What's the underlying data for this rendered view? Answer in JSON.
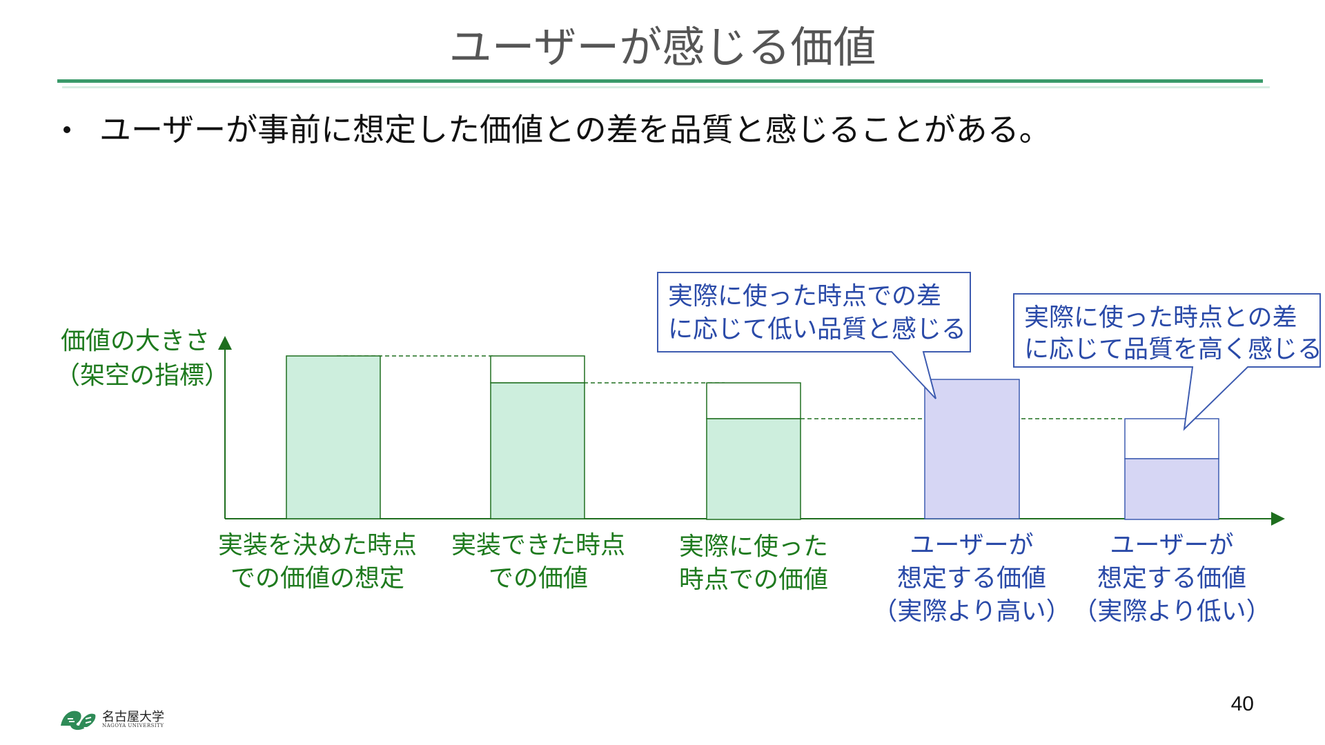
{
  "slide": {
    "title": "ユーザーが感じる価値",
    "bullet": "ユーザーが事前に想定した価値との差を品質と感じることがある。",
    "page_number": "40"
  },
  "diagram": {
    "y_axis_label": [
      "価値の大きさ",
      "（架空の指標）"
    ],
    "bars": [
      {
        "label": [
          "実装を決めた時点",
          "での価値の想定"
        ],
        "value": 100,
        "color": "green"
      },
      {
        "label": [
          "実装できた時点",
          "での価値"
        ],
        "value": 86,
        "outline_value": 100,
        "color": "green"
      },
      {
        "label": [
          "実際に使った",
          "時点での価値"
        ],
        "value": 63,
        "outline_value": 86,
        "color": "green"
      },
      {
        "label": [
          "ユーザーが",
          "想定する価値",
          "（実際より高い）"
        ],
        "value": 86,
        "color": "blue"
      },
      {
        "label": [
          "ユーザーが",
          "想定する価値",
          "（実際より低い）"
        ],
        "value": 38,
        "outline_value": 63,
        "color": "blue"
      }
    ],
    "callouts": [
      {
        "lines": [
          "実際に使った時点での差",
          "に応じて低い品質と感じる"
        ]
      },
      {
        "lines": [
          "実際に使った時点との差",
          "に応じて品質を高く感じる"
        ]
      }
    ],
    "colors": {
      "green_fill": "#cdeedd",
      "green_line": "#1e6e1e",
      "blue_fill": "#d6d6f4",
      "blue_line": "#3d5bb0",
      "label_green": "#1e7a1e",
      "label_blue": "#2a4aa8"
    }
  },
  "logo": {
    "name_jp": "名古屋大学",
    "name_en": "NAGOYA UNIVERSITY"
  }
}
